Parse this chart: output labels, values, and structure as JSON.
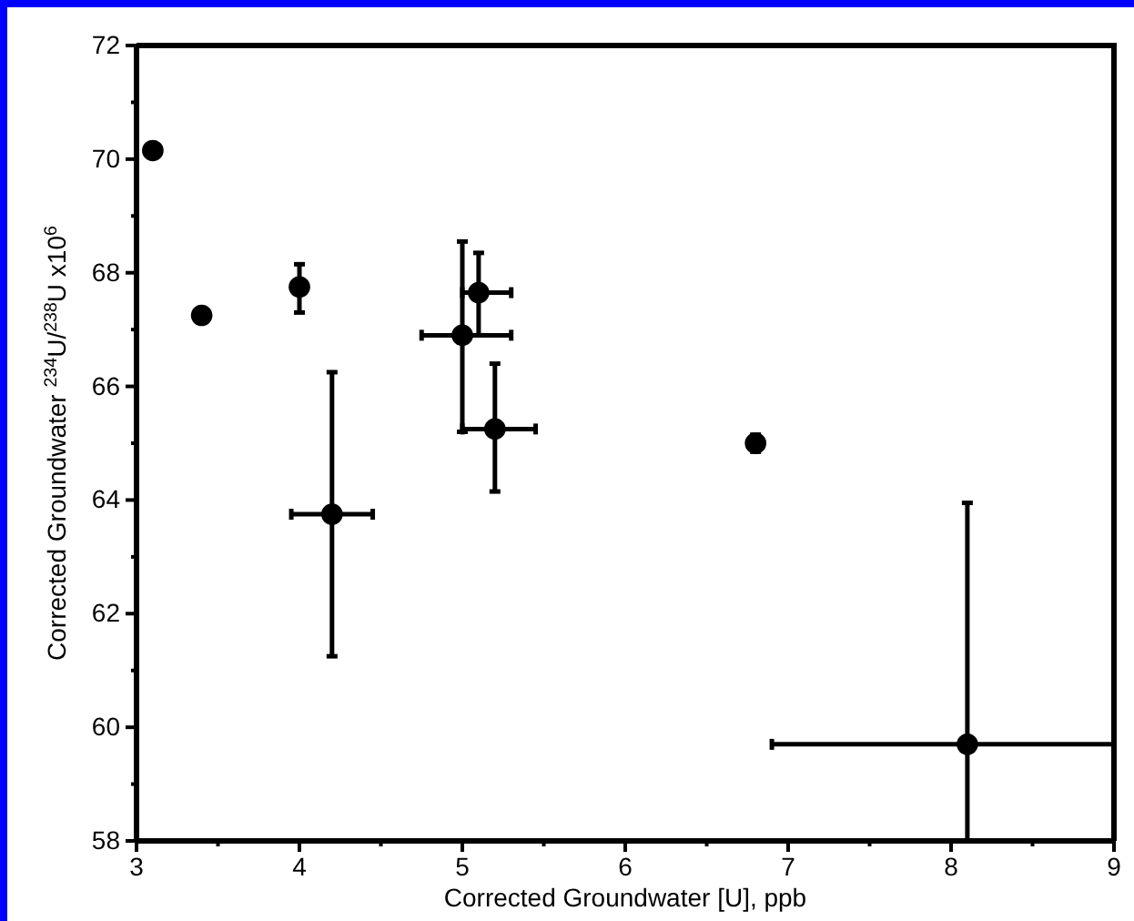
{
  "chart_data": {
    "type": "scatter",
    "xlabel": "Corrected Groundwater [U], ppb",
    "ylabel": "Corrected Groundwater $^{234}$U/$^{238}$U x10$^{6}$",
    "x": [
      3.1,
      3.4,
      4.0,
      4.2,
      5.0,
      5.1,
      5.2,
      6.8,
      8.1
    ],
    "values": [
      70.15,
      67.25,
      67.75,
      63.75,
      66.9,
      67.65,
      65.25,
      65.0,
      59.7
    ],
    "errors": [
      null,
      null,
      [
        67.3,
        68.15
      ],
      [
        61.25,
        66.25
      ],
      [
        65.2,
        68.55
      ],
      [
        66.9,
        68.35
      ],
      [
        64.15,
        66.4
      ],
      [
        64.85,
        65.15
      ],
      [
        58,
        63.95
      ]
    ],
    "xerrors": [
      null,
      null,
      null,
      [
        3.95,
        4.45
      ],
      [
        4.75,
        5.3
      ],
      [
        5.0,
        5.3
      ],
      [
        5.0,
        5.45
      ],
      null,
      [
        6.9,
        9
      ]
    ],
    "color": "#000000",
    "marker": "circle",
    "xlim": [
      3,
      9
    ],
    "xticks": [
      3,
      {
        "value": 3.5,
        "label": null
      },
      4,
      {
        "value": 4.5,
        "label": null
      },
      5,
      {
        "value": 5.5,
        "label": null
      },
      6,
      {
        "value": 6.5,
        "label": null
      },
      7,
      {
        "value": 7.5,
        "label": null
      },
      8,
      {
        "value": 8.5,
        "label": null
      },
      9
    ],
    "ylim": [
      58,
      72
    ],
    "yticks": [
      58,
      {
        "value": 59,
        "label": null
      },
      60,
      {
        "value": 61,
        "label": null
      },
      62,
      {
        "value": 63,
        "label": null
      },
      64,
      {
        "value": 65,
        "label": null
      },
      66,
      {
        "value": 67,
        "label": null
      },
      68,
      {
        "value": 69,
        "label": null
      },
      70,
      {
        "value": 71,
        "label": null
      },
      72
    ],
    "grid": false
  }
}
